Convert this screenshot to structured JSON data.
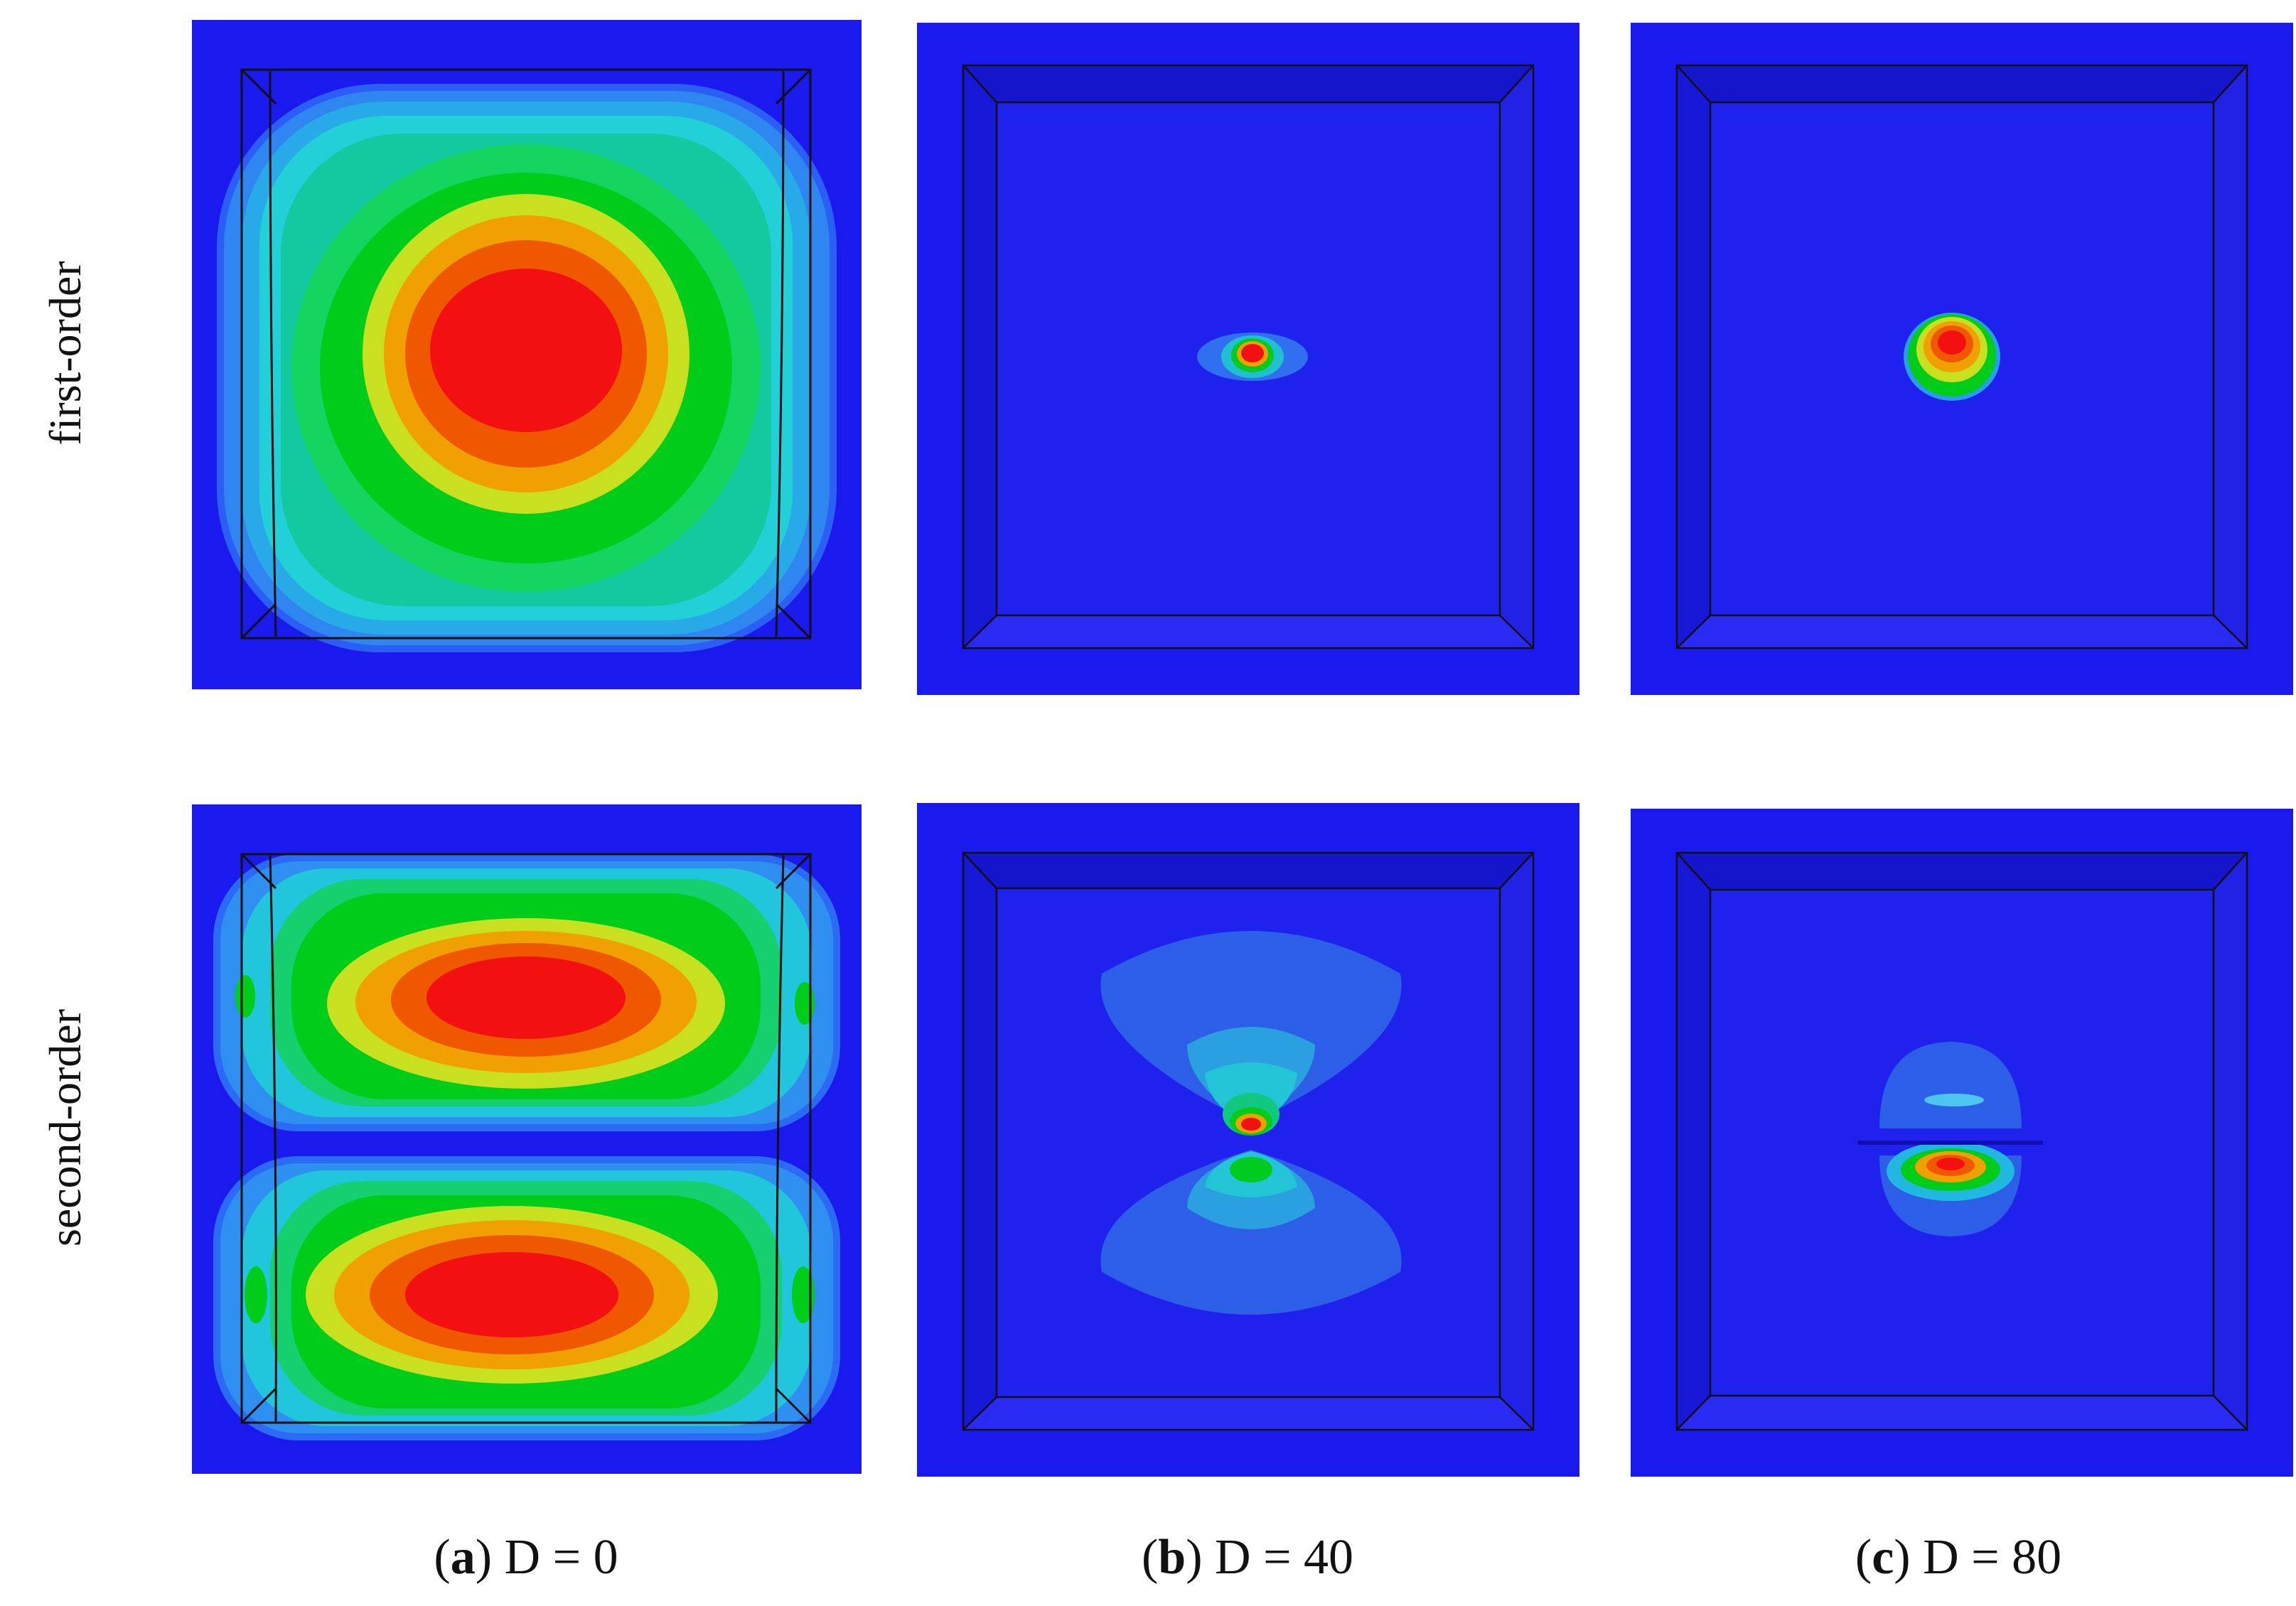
{
  "row_labels": {
    "first": "first-order",
    "second": "second-order"
  },
  "columns": [
    {
      "letter": "a",
      "rest": "D = 0"
    },
    {
      "letter": "b",
      "rest": "D = 40"
    },
    {
      "letter": "c",
      "rest": "D = 80"
    }
  ],
  "colors": {
    "background_blue": "#1a1aef",
    "frame_blue": "#2020d8",
    "edge_line": "#111111"
  }
}
